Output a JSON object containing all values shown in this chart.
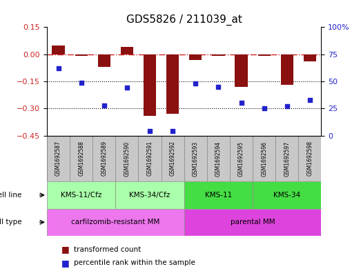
{
  "title": "GDS5826 / 211039_at",
  "samples": [
    "GSM1692587",
    "GSM1692588",
    "GSM1692589",
    "GSM1692590",
    "GSM1692591",
    "GSM1692592",
    "GSM1692593",
    "GSM1692594",
    "GSM1692595",
    "GSM1692596",
    "GSM1692597",
    "GSM1692598"
  ],
  "transformed_count": [
    0.05,
    -0.01,
    -0.07,
    0.04,
    -0.34,
    -0.33,
    -0.03,
    -0.01,
    -0.18,
    -0.01,
    -0.17,
    -0.04
  ],
  "percentile_rank": [
    62,
    49,
    28,
    44,
    4,
    4,
    48,
    45,
    30,
    25,
    27,
    33
  ],
  "ylim_left": [
    -0.45,
    0.15
  ],
  "ylim_right": [
    0,
    100
  ],
  "yticks_left": [
    0.15,
    0,
    -0.15,
    -0.3,
    -0.45
  ],
  "yticks_right": [
    100,
    75,
    50,
    25,
    0
  ],
  "cell_line_groups": [
    {
      "label": "KMS-11/Cfz",
      "start": 0,
      "end": 3,
      "color": "#AAFFAA"
    },
    {
      "label": "KMS-34/Cfz",
      "start": 3,
      "end": 6,
      "color": "#AAFFAA"
    },
    {
      "label": "KMS-11",
      "start": 6,
      "end": 9,
      "color": "#44DD44"
    },
    {
      "label": "KMS-34",
      "start": 9,
      "end": 12,
      "color": "#44DD44"
    }
  ],
  "cell_type_groups": [
    {
      "label": "carfilzomib-resistant MM",
      "start": 0,
      "end": 6,
      "color": "#EE77EE"
    },
    {
      "label": "parental MM",
      "start": 6,
      "end": 12,
      "color": "#DD44DD"
    }
  ],
  "bar_color": "#8B1010",
  "dot_color": "#2222CC",
  "dashed_line_color": "#CC2222",
  "grid_color": "#000000",
  "legend_red_label": "transformed count",
  "legend_blue_label": "percentile rank within the sample",
  "cell_line_row_label": "cell line",
  "cell_type_row_label": "cell type",
  "sample_box_color": "#C8C8C8",
  "left_yaxis_color": "#CC2222",
  "right_yaxis_color": "#2222CC"
}
